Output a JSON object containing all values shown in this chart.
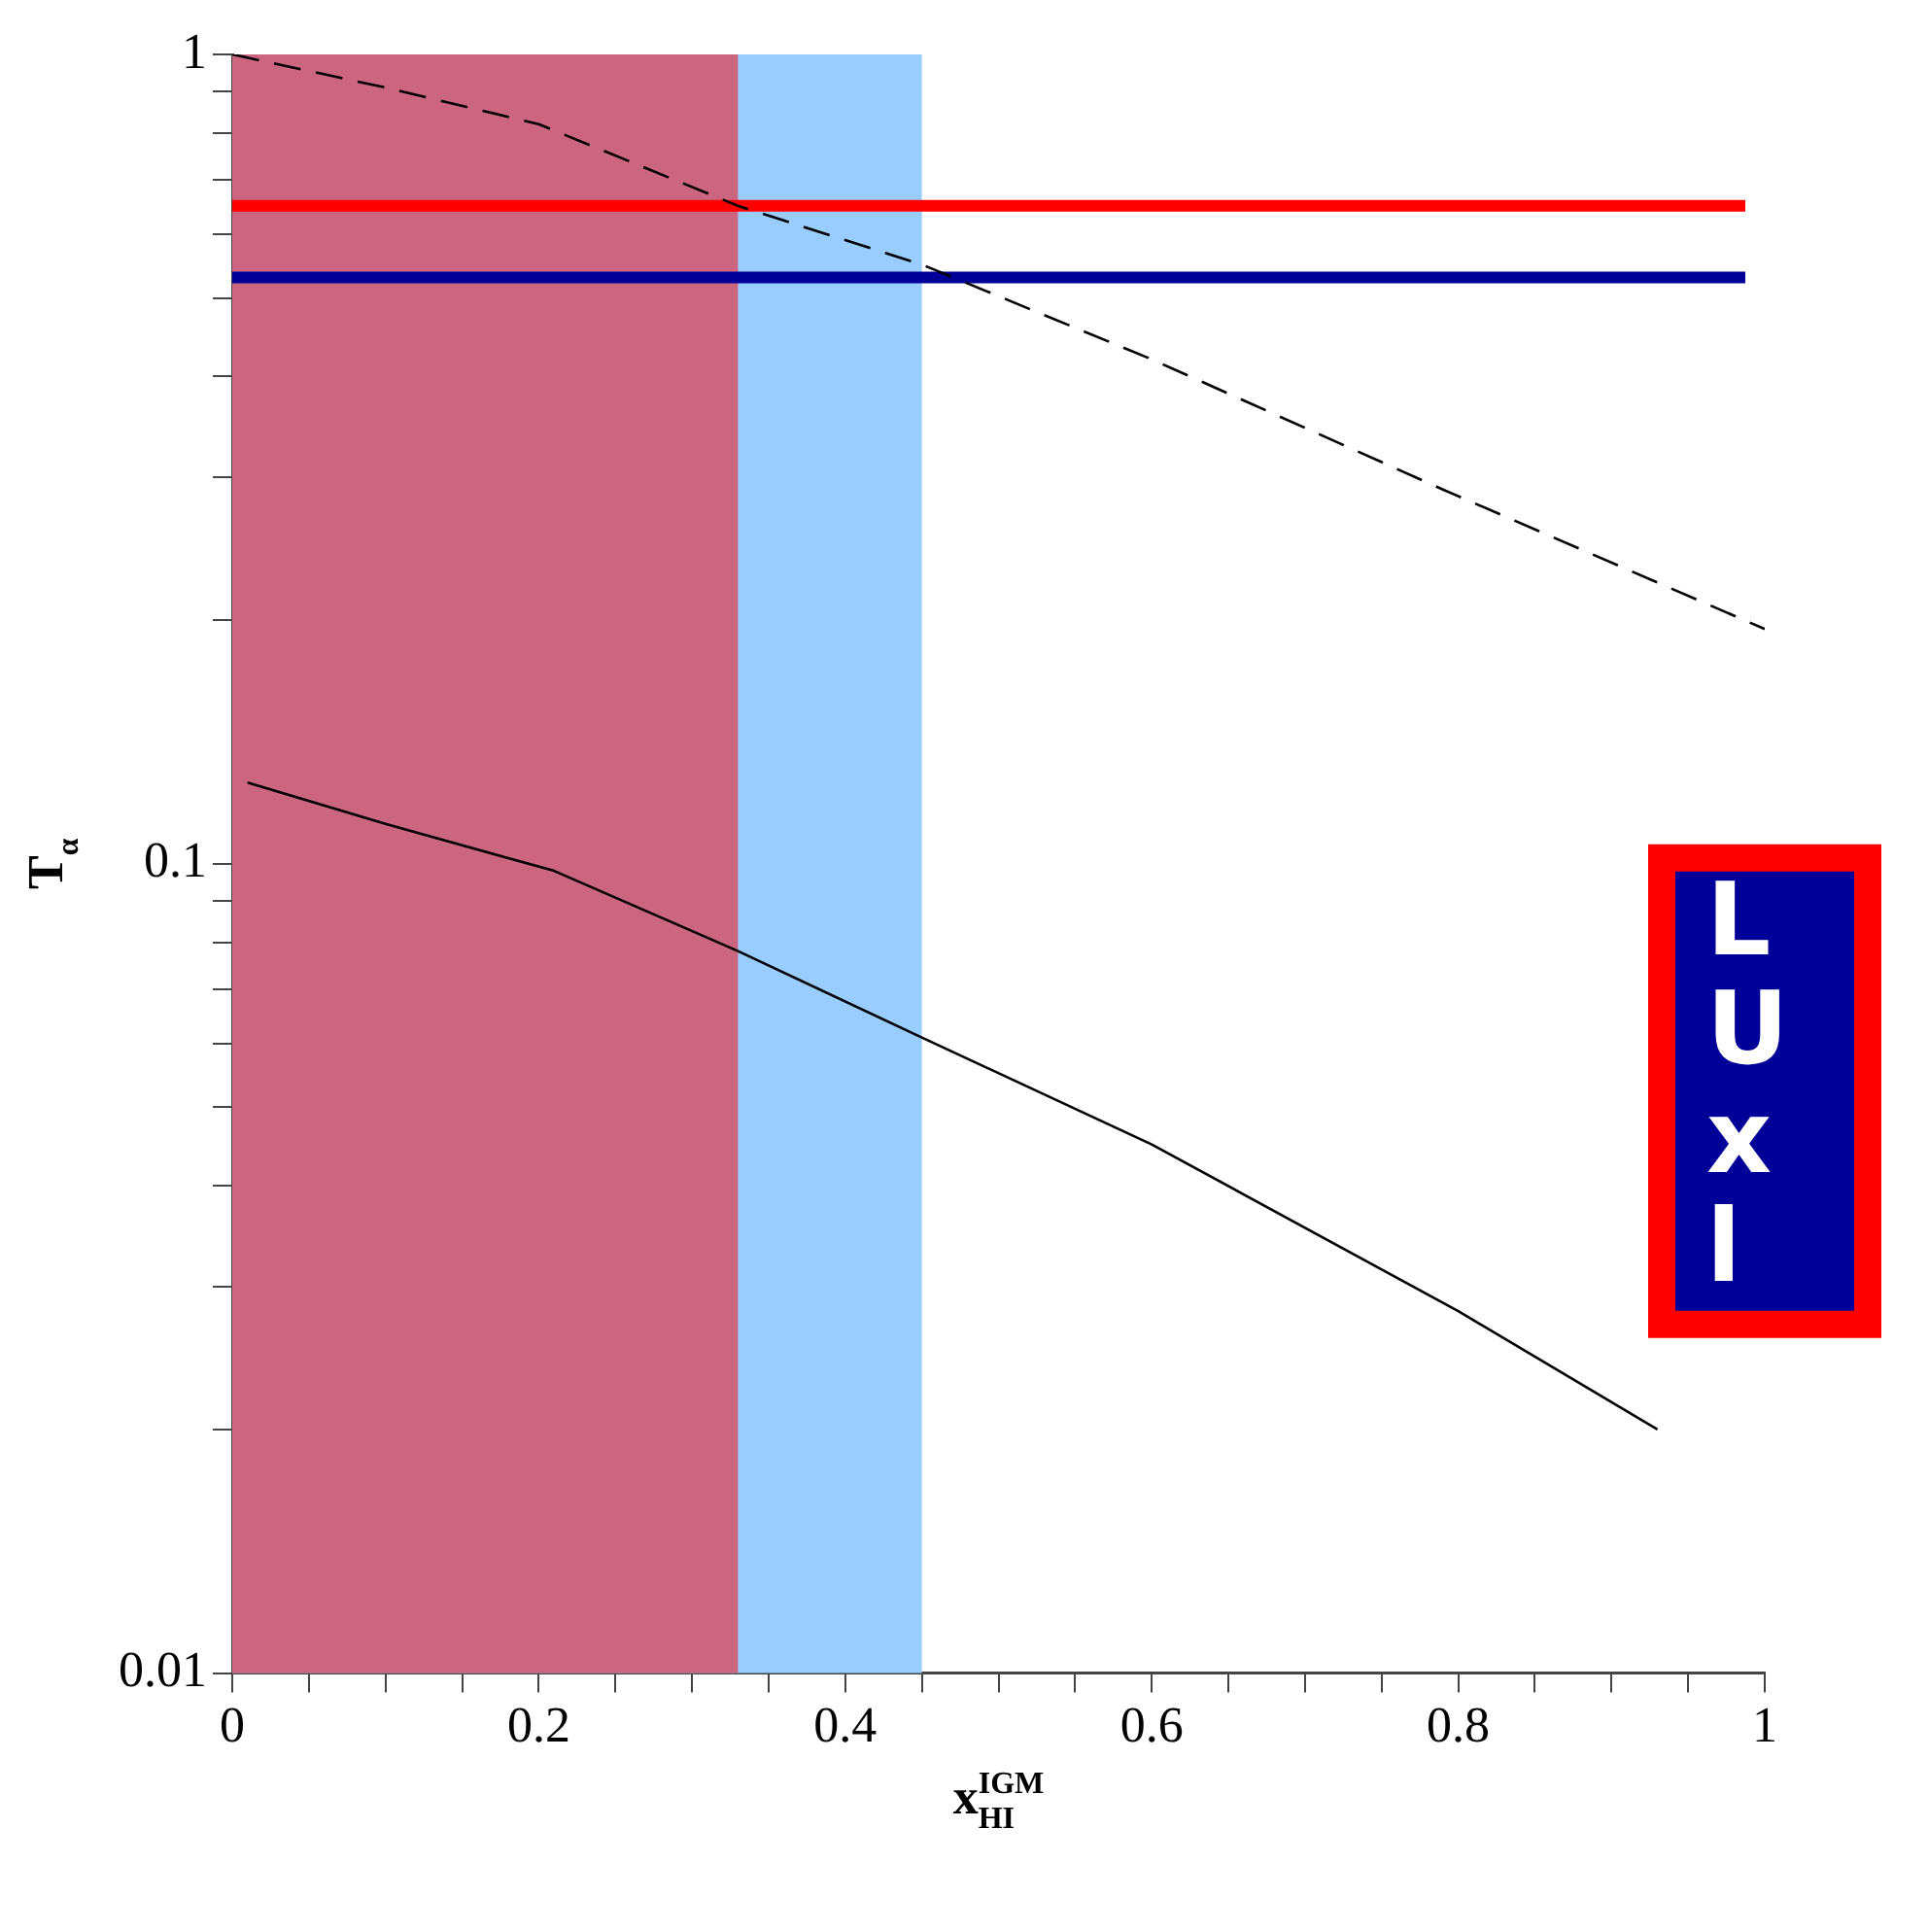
{
  "chart_data": {
    "type": "line",
    "xlabel": "x$_{HI}$$^{IGM}$",
    "ylabel": "T$_{α}$",
    "log": "y",
    "xlim": [
      0,
      1
    ],
    "ylim": [
      0.01,
      1
    ],
    "xticks": [
      0,
      {
        "value": 0.05,
        "label": null
      },
      {
        "value": 0.1,
        "label": null
      },
      {
        "value": 0.15,
        "label": null
      },
      0.2,
      {
        "value": 0.25,
        "label": null
      },
      {
        "value": 0.3,
        "label": null
      },
      {
        "value": 0.35,
        "label": null
      },
      0.4,
      {
        "value": 0.45,
        "label": null
      },
      {
        "value": 0.5,
        "label": null
      },
      {
        "value": 0.55,
        "label": null
      },
      0.6,
      {
        "value": 0.65,
        "label": null
      },
      {
        "value": 0.7,
        "label": null
      },
      {
        "value": 0.75,
        "label": null
      },
      0.8,
      {
        "value": 0.85,
        "label": null
      },
      {
        "value": 0.9,
        "label": null
      },
      {
        "value": 0.95,
        "label": null
      },
      1
    ],
    "yticks": [
      0.01,
      {
        "value": 0.02,
        "label": null
      },
      {
        "value": 0.03,
        "label": null
      },
      {
        "value": 0.04,
        "label": null
      },
      {
        "value": 0.05,
        "label": null
      },
      {
        "value": 0.06,
        "label": null
      },
      {
        "value": 0.07,
        "label": null
      },
      {
        "value": 0.08,
        "label": null
      },
      {
        "value": 0.09,
        "label": null
      },
      0.1,
      {
        "value": 0.2,
        "label": null
      },
      {
        "value": 0.3,
        "label": null
      },
      {
        "value": 0.4,
        "label": null
      },
      {
        "value": 0.5,
        "label": null
      },
      {
        "value": 0.6,
        "label": null
      },
      {
        "value": 0.7,
        "label": null
      },
      {
        "value": 0.8,
        "label": null
      },
      {
        "value": 0.9,
        "label": null
      },
      1
    ],
    "series": [
      {
        "color": "#000000",
        "line_style": "dashed",
        "x": [
          0,
          0.1,
          0.2,
          0.33,
          0.45,
          0.6,
          0.79,
          1
        ],
        "values": [
          1.0,
          0.91,
          0.82,
          0.65,
          0.55,
          0.42,
          0.29,
          0.195
        ]
      },
      {
        "color": "#000000",
        "line_style": "solid",
        "x": [
          0.01,
          0.1,
          0.21,
          0.33,
          0.45,
          0.6,
          0.8,
          0.93
        ],
        "values": [
          0.126,
          0.112,
          0.098,
          0.078,
          0.061,
          0.045,
          0.028,
          0.02
        ]
      }
    ],
    "bands": [
      {
        "axis": "x",
        "from": 0,
        "to": 0.45,
        "color": "#99ccff"
      },
      {
        "axis": "x",
        "from": 0,
        "to": 0.33,
        "color": "#cc6680"
      }
    ],
    "ref_lines": [
      {
        "axis": "y",
        "value": 0.65,
        "color": "#ff0000"
      },
      {
        "axis": "y",
        "value": 0.53,
        "color": "#000099"
      }
    ],
    "annotations": [
      "L\nU\nx\nl"
    ],
    "legend": false,
    "grid": false
  }
}
